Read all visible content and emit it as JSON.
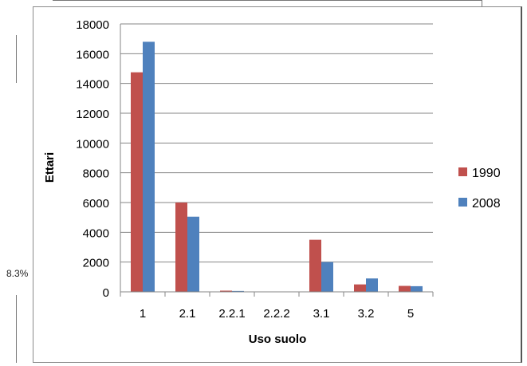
{
  "side_label": "8.3%",
  "chart_data": {
    "type": "bar",
    "categories": [
      "1",
      "2.1",
      "2.2.1",
      "2.2.2",
      "3.1",
      "3.2",
      "5"
    ],
    "series": [
      {
        "name": "1990",
        "values": [
          14750,
          6000,
          80,
          0,
          3500,
          500,
          400
        ],
        "color": "#c0504d"
      },
      {
        "name": "2008",
        "values": [
          16800,
          5050,
          60,
          0,
          2000,
          900,
          380
        ],
        "color": "#4f81bd"
      }
    ],
    "xlabel": "Uso suolo",
    "ylabel": "Ettari",
    "ylim": [
      0,
      18000
    ],
    "yticks": [
      "0",
      "2000",
      "4000",
      "6000",
      "8000",
      "10000",
      "12000",
      "14000",
      "16000",
      "18000"
    ],
    "grid": true,
    "legend": "right"
  }
}
